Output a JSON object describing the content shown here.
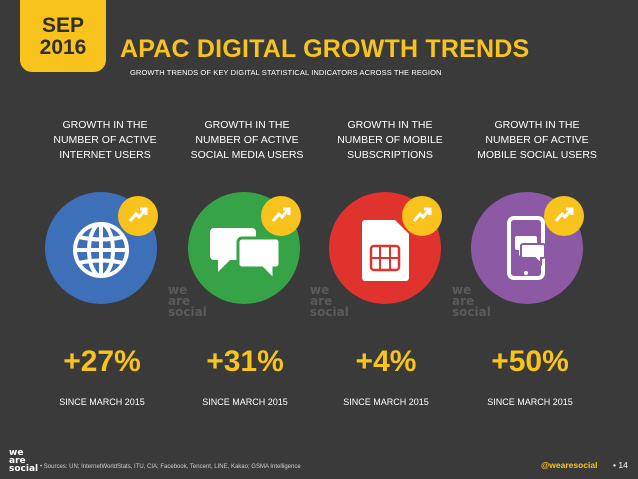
{
  "header": {
    "month": "SEP",
    "year": "2016",
    "title": "APAC DIGITAL GROWTH TRENDS",
    "subtitle": "GROWTH TRENDS OF KEY DIGITAL STATISTICAL INDICATORS ACROSS THE REGION"
  },
  "panels": [
    {
      "line1": "GROWTH IN THE",
      "line2": "NUMBER OF ACTIVE",
      "line3": "INTERNET USERS",
      "icon": "globe-icon",
      "color": "#3d70b8",
      "value": "+27%",
      "since": "SINCE MARCH 2015"
    },
    {
      "line1": "GROWTH IN THE",
      "line2": "NUMBER OF ACTIVE",
      "line3": "SOCIAL MEDIA USERS",
      "icon": "chat-bubbles-icon",
      "color": "#37a347",
      "value": "+31%",
      "since": "SINCE MARCH 2015"
    },
    {
      "line1": "GROWTH IN THE",
      "line2": "NUMBER OF MOBILE",
      "line3": "SUBSCRIPTIONS",
      "icon": "sim-card-icon",
      "color": "#e0332d",
      "value": "+4%",
      "since": "SINCE MARCH 2015"
    },
    {
      "line1": "GROWTH IN THE",
      "line2": "NUMBER OF ACTIVE",
      "line3": "MOBILE SOCIAL USERS",
      "icon": "mobile-chat-icon",
      "color": "#8c59a5",
      "value": "+50%",
      "since": "SINCE MARCH 2015"
    }
  ],
  "watermark": {
    "line1": "we",
    "line2": "are",
    "line3": "social"
  },
  "footer": {
    "logo_line1": "we",
    "logo_line2": "are",
    "logo_line3": "social",
    "sources": "• Sources: UN; InternetWorldStats, ITU, CIA; Facebook, Tencent, LINE, Kakao; GSMA Intelligence",
    "handle": "@wearesocial",
    "page": "• 14"
  },
  "colors": {
    "background": "#3a3a3a",
    "accent": "#f7c31c"
  }
}
